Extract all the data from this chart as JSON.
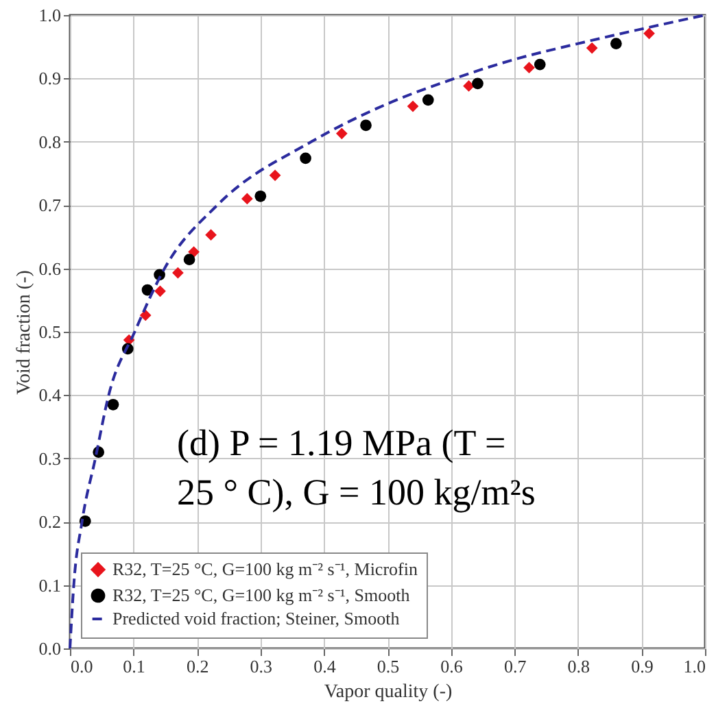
{
  "chart_data": {
    "type": "scatter",
    "xlabel": "Vapor quality (-)",
    "ylabel": "Void fraction (-)",
    "xlim": [
      0,
      1
    ],
    "ylim": [
      0,
      1
    ],
    "xticks": [
      {
        "value": 0,
        "label": "0.0"
      },
      {
        "value": 0.1,
        "label": "0.1"
      },
      {
        "value": 0.2,
        "label": "0.2"
      },
      {
        "value": 0.3,
        "label": "0.3"
      },
      {
        "value": 0.4,
        "label": "0.4"
      },
      {
        "value": 0.5,
        "label": "0.5"
      },
      {
        "value": 0.6,
        "label": "0.6"
      },
      {
        "value": 0.7,
        "label": "0.7"
      },
      {
        "value": 0.8,
        "label": "0.8"
      },
      {
        "value": 0.9,
        "label": "0.9"
      },
      {
        "value": 1,
        "label": "1.0"
      }
    ],
    "yticks": [
      {
        "value": 0,
        "label": "0.0"
      },
      {
        "value": 0.1,
        "label": "0.1"
      },
      {
        "value": 0.2,
        "label": "0.2"
      },
      {
        "value": 0.3,
        "label": "0.3"
      },
      {
        "value": 0.4,
        "label": "0.4"
      },
      {
        "value": 0.5,
        "label": "0.5"
      },
      {
        "value": 0.6,
        "label": "0.6"
      },
      {
        "value": 0.7,
        "label": "0.7"
      },
      {
        "value": 0.8,
        "label": "0.8"
      },
      {
        "value": 0.9,
        "label": "0.9"
      },
      {
        "value": 1,
        "label": "1.0"
      }
    ],
    "grid": true,
    "legend": "bottom left",
    "annotations": [
      "(d) P = 1.19 MPa (T = 25 ° C), G = 100 kg/m²s"
    ],
    "series": [
      {
        "name": "R32, T=25 °C, G=100 kg m⁻² s⁻¹, Microfin",
        "marker": "diamond",
        "color": "#e8141c",
        "x": [
          0.093,
          0.119,
          0.142,
          0.17,
          0.195,
          0.222,
          0.279,
          0.323,
          0.428,
          0.54,
          0.628,
          0.723,
          0.822,
          0.912
        ],
        "values": [
          0.487,
          0.526,
          0.564,
          0.593,
          0.626,
          0.653,
          0.71,
          0.747,
          0.813,
          0.856,
          0.888,
          0.917,
          0.948,
          0.971
        ]
      },
      {
        "name": "R32, T=25 °C, G=100 kg m⁻² s⁻¹, Smooth",
        "marker": "circle",
        "color": "#000000",
        "x": [
          0.024,
          0.045,
          0.068,
          0.091,
          0.122,
          0.141,
          0.188,
          0.3,
          0.371,
          0.466,
          0.564,
          0.642,
          0.74,
          0.86
        ],
        "values": [
          0.201,
          0.31,
          0.385,
          0.473,
          0.566,
          0.59,
          0.614,
          0.714,
          0.774,
          0.826,
          0.866,
          0.892,
          0.922,
          0.955
        ]
      },
      {
        "name": "Predicted void fraction; Steiner, Smooth",
        "type": "line",
        "marker": "none",
        "line_style": "dashed",
        "color": "#2b2b9e",
        "x": [
          0,
          0.006,
          0.019,
          0.04,
          0.061,
          0.102,
          0.149,
          0.232,
          0.38,
          0.5,
          0.606,
          0.7,
          0.8,
          0.9,
          1
        ],
        "values": [
          0,
          0.1,
          0.2,
          0.3,
          0.4,
          0.5,
          0.6,
          0.7,
          0.8,
          0.86,
          0.9,
          0.93,
          0.955,
          0.978,
          1
        ]
      }
    ]
  }
}
